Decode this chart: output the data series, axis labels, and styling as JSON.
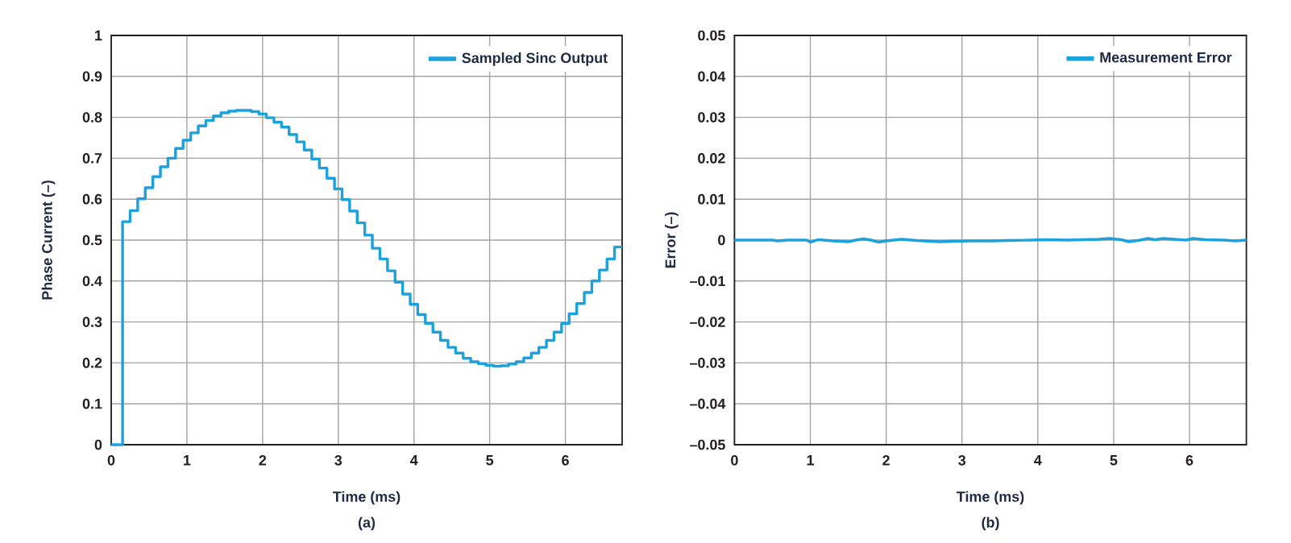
{
  "chart_data": [
    {
      "type": "step",
      "xlabel": "Time (ms)",
      "ylabel": "Phase Current (–)",
      "annotations": [
        "(a)"
      ],
      "xlim": [
        0,
        6.75
      ],
      "ylim": [
        0,
        1
      ],
      "xticks": [
        0,
        1,
        2,
        3,
        4,
        5,
        6
      ],
      "yticks": [
        0,
        0.1,
        0.2,
        0.3,
        0.4,
        0.5,
        0.6,
        0.7,
        0.8,
        0.9,
        1
      ],
      "grid": true,
      "legend": "top right",
      "series": [
        {
          "name": "Sampled Sinc Output",
          "color": "#1ba1dc",
          "x": [
            0,
            0.15,
            0.25,
            0.35,
            0.45,
            0.55,
            0.65,
            0.75,
            0.85,
            0.95,
            1.05,
            1.15,
            1.25,
            1.35,
            1.45,
            1.55,
            1.65,
            1.75,
            1.85,
            1.95,
            2.05,
            2.15,
            2.25,
            2.35,
            2.45,
            2.55,
            2.65,
            2.75,
            2.85,
            2.95,
            3.05,
            3.15,
            3.25,
            3.35,
            3.45,
            3.55,
            3.65,
            3.75,
            3.85,
            3.95,
            4.05,
            4.15,
            4.25,
            4.35,
            4.45,
            4.55,
            4.65,
            4.75,
            4.85,
            4.95,
            5.05,
            5.15,
            5.25,
            5.35,
            5.45,
            5.55,
            5.65,
            5.75,
            5.85,
            5.95,
            6.05,
            6.15,
            6.25,
            6.35,
            6.45,
            6.55,
            6.65,
            6.75
          ],
          "values": [
            0,
            0.545,
            0.572,
            0.601,
            0.628,
            0.655,
            0.679,
            0.7,
            0.724,
            0.744,
            0.762,
            0.779,
            0.792,
            0.803,
            0.811,
            0.815,
            0.817,
            0.817,
            0.814,
            0.808,
            0.799,
            0.788,
            0.776,
            0.758,
            0.74,
            0.72,
            0.698,
            0.676,
            0.651,
            0.625,
            0.599,
            0.571,
            0.542,
            0.512,
            0.48,
            0.454,
            0.425,
            0.397,
            0.368,
            0.343,
            0.318,
            0.296,
            0.275,
            0.255,
            0.238,
            0.224,
            0.211,
            0.203,
            0.198,
            0.194,
            0.192,
            0.193,
            0.197,
            0.203,
            0.212,
            0.224,
            0.238,
            0.255,
            0.275,
            0.296,
            0.32,
            0.345,
            0.372,
            0.4,
            0.427,
            0.454,
            0.483,
            0.483
          ]
        }
      ]
    },
    {
      "type": "line",
      "xlabel": "Time (ms)",
      "ylabel": "Error (–)",
      "annotations": [
        "(b)"
      ],
      "xlim": [
        0,
        6.75
      ],
      "ylim": [
        -0.05,
        0.05
      ],
      "xticks": [
        0,
        1,
        2,
        3,
        4,
        5,
        6
      ],
      "yticks": [
        {
          "value": -0.05,
          "label": "–0.05"
        },
        {
          "value": -0.04,
          "label": "–0.04"
        },
        {
          "value": -0.03,
          "label": "–0.03"
        },
        {
          "value": -0.02,
          "label": "–0.02"
        },
        {
          "value": -0.01,
          "label": "–0.01"
        },
        0,
        0.01,
        0.02,
        0.03,
        0.04,
        0.05
      ],
      "grid": true,
      "legend": "top right",
      "series": [
        {
          "name": "Measurement Error",
          "color": "#1ba1dc",
          "x": [
            0,
            0.5,
            0.57,
            0.7,
            0.95,
            1.0,
            1.1,
            1.3,
            1.5,
            1.6,
            1.7,
            1.8,
            1.9,
            2.0,
            2.2,
            2.4,
            2.7,
            2.9,
            3.1,
            3.4,
            3.6,
            3.9,
            4.1,
            4.4,
            4.6,
            4.8,
            4.95,
            5.1,
            5.2,
            5.35,
            5.45,
            5.55,
            5.65,
            5.8,
            5.95,
            6.05,
            6.2,
            6.45,
            6.6,
            6.75
          ],
          "values": [
            0,
            0,
            -0.0002,
            0,
            0,
            -0.0005,
            0.0001,
            -0.0002,
            -0.0004,
            0,
            0.0003,
            0,
            -0.0005,
            -0.0002,
            0.0002,
            -0.0001,
            -0.0004,
            -0.0003,
            -0.0002,
            -0.0002,
            -0.0001,
            0,
            0.0001,
            0,
            0.0001,
            0.0002,
            0.0004,
            0.0001,
            -0.0004,
            0,
            0.0004,
            0.0001,
            0.0004,
            0.0002,
            0,
            0.0004,
            0.0001,
            0,
            -0.0002,
            0
          ]
        }
      ]
    }
  ]
}
